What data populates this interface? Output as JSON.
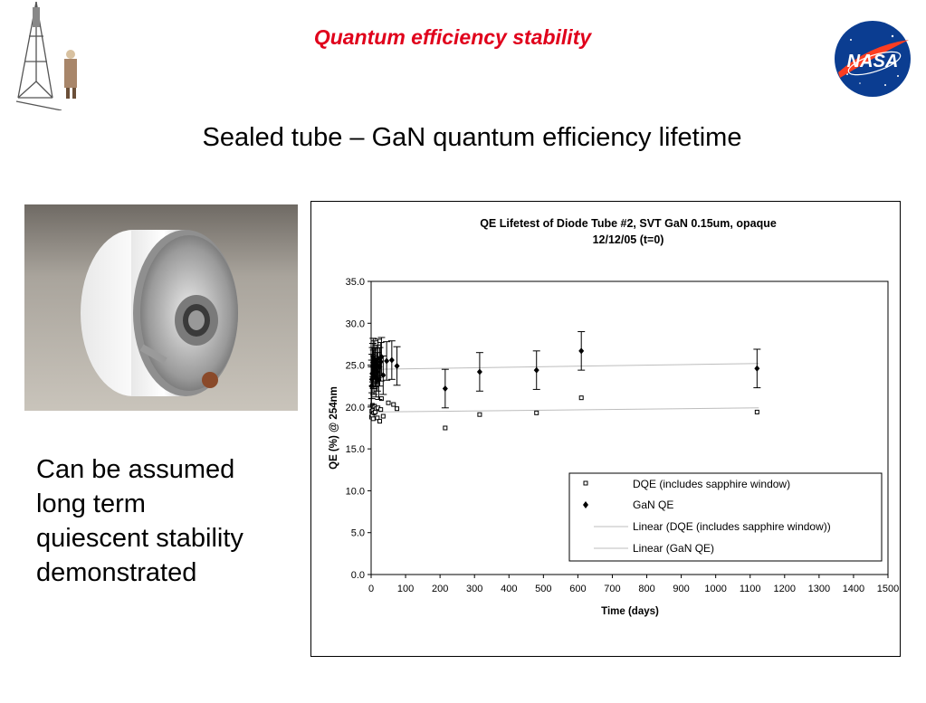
{
  "slide": {
    "title": "Quantum efficiency stability",
    "subtitle": "Sealed tube – GaN quantum efficiency lifetime",
    "caption_lines": [
      "Can be assumed",
      "long term",
      "quiescent stability",
      "demonstrated"
    ],
    "nasa_logo_text": "NASA",
    "colors": {
      "title": "#e0001b",
      "nasa_blue": "#0b3d91",
      "nasa_red": "#fc3d21"
    }
  },
  "chart_data": {
    "type": "scatter",
    "title": "QE Lifetest of Diode Tube #2, SVT GaN 0.15um, opaque",
    "subtitle": "12/12/05 (t=0)",
    "xlabel": "Time (days)",
    "ylabel": "QE (%) @ 254nm",
    "xlim": [
      0,
      1500
    ],
    "ylim": [
      0,
      35
    ],
    "xticks": [
      "0",
      "100",
      "200",
      "300",
      "400",
      "500",
      "600",
      "700",
      "800",
      "900",
      "1000",
      "1100",
      "1200",
      "1300",
      "1400",
      "1500"
    ],
    "yticks": [
      "0.0",
      "5.0",
      "10.0",
      "15.0",
      "20.0",
      "25.0",
      "30.0",
      "35.0"
    ],
    "grid": false,
    "legend_position": "bottom-right",
    "legend": [
      "DQE (includes sapphire window)",
      "GaN QE",
      "Linear (DQE (includes sapphire window))",
      "Linear (GaN QE)"
    ],
    "series": [
      {
        "name": "DQE (includes sapphire window)",
        "marker": "open-square",
        "points": [
          [
            1,
            18.8
          ],
          [
            2,
            19.5
          ],
          [
            3,
            19.0
          ],
          [
            4,
            20.2
          ],
          [
            5,
            19.6
          ],
          [
            6,
            18.6
          ],
          [
            7,
            20.0
          ],
          [
            8,
            19.3
          ],
          [
            10,
            20.1
          ],
          [
            12,
            19.4
          ],
          [
            15,
            19.8
          ],
          [
            18,
            18.7
          ],
          [
            20,
            19.9
          ],
          [
            25,
            18.3
          ],
          [
            28,
            19.7
          ],
          [
            30,
            21.0
          ],
          [
            35,
            18.9
          ],
          [
            50,
            20.5
          ],
          [
            65,
            20.3
          ],
          [
            75,
            19.8
          ],
          [
            215,
            17.5
          ],
          [
            315,
            19.1
          ],
          [
            480,
            19.3
          ],
          [
            610,
            21.1
          ],
          [
            1120,
            19.4
          ]
        ]
      },
      {
        "name": "GaN QE",
        "marker": "filled-diamond",
        "error": 2.3,
        "points": [
          [
            1,
            22.5
          ],
          [
            2,
            23.3
          ],
          [
            3,
            24.0
          ],
          [
            4,
            24.8
          ],
          [
            5,
            25.3
          ],
          [
            6,
            25.9
          ],
          [
            7,
            24.5
          ],
          [
            8,
            23.8
          ],
          [
            10,
            25.6
          ],
          [
            12,
            24.7
          ],
          [
            14,
            23.5
          ],
          [
            16,
            25.1
          ],
          [
            18,
            24.2
          ],
          [
            20,
            25.8
          ],
          [
            22,
            23.2
          ],
          [
            25,
            24.8
          ],
          [
            28,
            25.4
          ],
          [
            30,
            26.0
          ],
          [
            35,
            23.8
          ],
          [
            45,
            25.5
          ],
          [
            60,
            25.6
          ],
          [
            75,
            24.9
          ],
          [
            215,
            22.2
          ],
          [
            315,
            24.2
          ],
          [
            480,
            24.4
          ],
          [
            610,
            26.7
          ],
          [
            1120,
            24.6
          ]
        ]
      }
    ],
    "trendlines": [
      {
        "name": "Linear (DQE (includes sapphire window))",
        "from": [
          0,
          19.4
        ],
        "to": [
          1125,
          19.9
        ]
      },
      {
        "name": "Linear (GaN QE)",
        "from": [
          0,
          24.5
        ],
        "to": [
          1125,
          25.2
        ]
      }
    ]
  }
}
